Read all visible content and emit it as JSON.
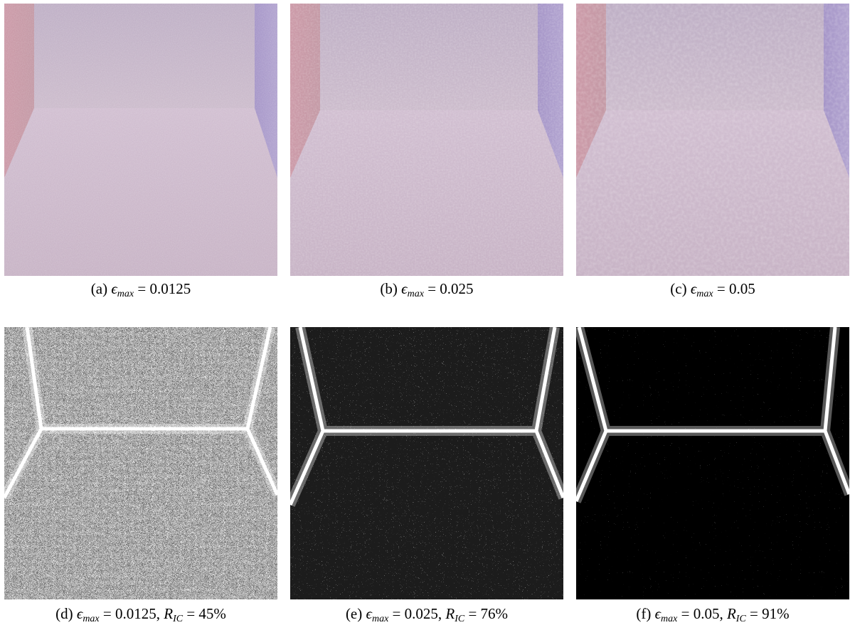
{
  "figure": {
    "panels": [
      {
        "caption": [
          {
            "text": "(a) "
          },
          {
            "text": "ϵ",
            "math": true
          },
          {
            "text": "max",
            "math": true,
            "sub": true
          },
          {
            "text": " = 0.0125"
          }
        ]
      },
      {
        "caption": [
          {
            "text": "(b) "
          },
          {
            "text": "ϵ",
            "math": true
          },
          {
            "text": "max",
            "math": true,
            "sub": true
          },
          {
            "text": " = 0.025"
          }
        ]
      },
      {
        "caption": [
          {
            "text": "(c) "
          },
          {
            "text": "ϵ",
            "math": true
          },
          {
            "text": "max",
            "math": true,
            "sub": true
          },
          {
            "text": " = 0.05"
          }
        ]
      },
      {
        "caption": [
          {
            "text": "(d) "
          },
          {
            "text": "ϵ",
            "math": true
          },
          {
            "text": "max",
            "math": true,
            "sub": true
          },
          {
            "text": " = 0.0125, "
          },
          {
            "text": "R",
            "math": true
          },
          {
            "text": "IC",
            "math": true,
            "sub": true
          },
          {
            "text": " = 45%"
          }
        ]
      },
      {
        "caption": [
          {
            "text": "(e) "
          },
          {
            "text": "ϵ",
            "math": true
          },
          {
            "text": "max",
            "math": true,
            "sub": true
          },
          {
            "text": " = 0.025, "
          },
          {
            "text": "R",
            "math": true
          },
          {
            "text": "IC",
            "math": true,
            "sub": true
          },
          {
            "text": " = 76%"
          }
        ]
      },
      {
        "caption": [
          {
            "text": "(f) "
          },
          {
            "text": "ϵ",
            "math": true
          },
          {
            "text": "max",
            "math": true,
            "sub": true
          },
          {
            "text": " = 0.05, "
          },
          {
            "text": "R",
            "math": true
          },
          {
            "text": "IC",
            "math": true,
            "sub": true
          },
          {
            "text": " = 91%"
          }
        ]
      }
    ]
  }
}
